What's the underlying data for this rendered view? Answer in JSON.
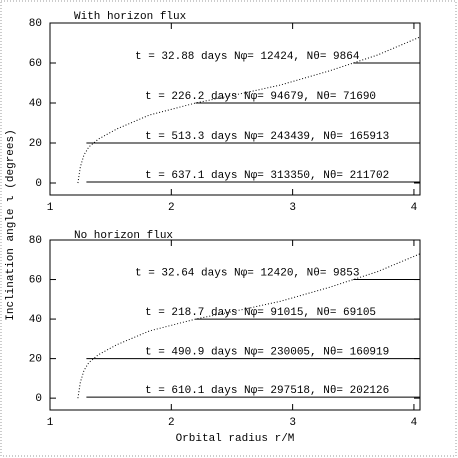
{
  "chart_data": [
    {
      "type": "line",
      "title": "With horizon flux",
      "ylabel": "Inclination angle ι  (degrees)",
      "xlim": [
        1,
        4.05
      ],
      "ylim": [
        -6,
        80
      ],
      "xticks": [
        1,
        2,
        3,
        4
      ],
      "yticks": [
        0,
        20,
        40,
        60,
        80
      ],
      "curve": {
        "x": [
          1.23,
          1.25,
          1.28,
          1.32,
          1.4,
          1.55,
          1.82,
          2.2,
          2.6,
          2.9,
          3.3,
          3.7,
          4.05
        ],
        "y": [
          0,
          8,
          14,
          18,
          22,
          27,
          34,
          40,
          45,
          49,
          56,
          64,
          73
        ]
      },
      "levels": [
        {
          "y": 60,
          "x_start": 3.5,
          "label": "t = 32.88 days  Nφ= 12424, Nθ= 9864"
        },
        {
          "y": 40,
          "x_start": 2.2,
          "label": "t = 226.2 days  Nφ= 94679, Nθ= 71690"
        },
        {
          "y": 20,
          "x_start": 1.3,
          "label": "t = 513.3 days  Nφ= 243439, Nθ= 165913"
        },
        {
          "y": 0.5,
          "x_start": 1.3,
          "label": "t = 637.1 days  Nφ= 313350, Nθ= 211702"
        }
      ]
    },
    {
      "type": "line",
      "title": "No horizon flux",
      "xlabel": "Orbital radius r/M",
      "xlim": [
        1,
        4.05
      ],
      "ylim": [
        -6,
        80
      ],
      "xticks": [
        1,
        2,
        3,
        4
      ],
      "yticks": [
        0,
        20,
        40,
        60,
        80
      ],
      "curve": {
        "x": [
          1.23,
          1.25,
          1.28,
          1.32,
          1.4,
          1.55,
          1.82,
          2.2,
          2.6,
          2.9,
          3.3,
          3.7,
          4.05
        ],
        "y": [
          0,
          8,
          14,
          18,
          22,
          27,
          34,
          40,
          45,
          49,
          56,
          64,
          73
        ]
      },
      "levels": [
        {
          "y": 60,
          "x_start": 3.5,
          "label": "t = 32.64 days  Nφ= 12420, Nθ= 9853"
        },
        {
          "y": 40,
          "x_start": 2.2,
          "label": "t = 218.7 days  Nφ= 91015, Nθ= 69105"
        },
        {
          "y": 20,
          "x_start": 1.3,
          "label": "t = 490.9 days  Nφ= 230005, Nθ= 160919"
        },
        {
          "y": 0.5,
          "x_start": 1.3,
          "label": "t = 610.1 days  Nφ= 297518, Nθ= 202126"
        }
      ]
    }
  ]
}
